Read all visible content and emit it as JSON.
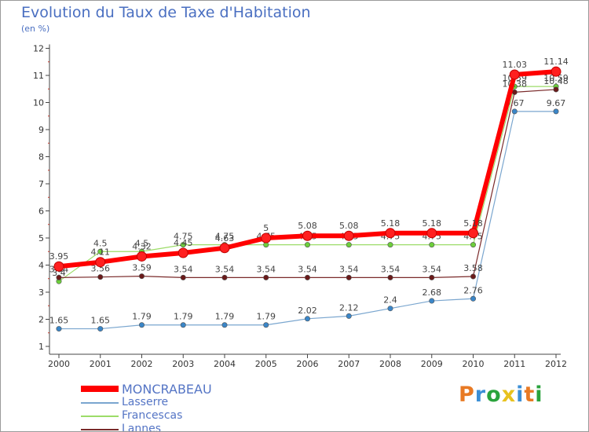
{
  "header": {
    "title": "Evolution du Taux de Taxe d'Habitation",
    "subtitle": "(en %)"
  },
  "logo": {
    "text": "Proxiti",
    "colors": [
      "#e87a24",
      "#3c8fd6",
      "#2aa33c",
      "#e8c21e",
      "#3c8fd6",
      "#e87a24",
      "#2aa33c"
    ]
  },
  "chart_data": {
    "type": "line",
    "categories": [
      "2000",
      "2001",
      "2002",
      "2003",
      "2004",
      "2005",
      "2006",
      "2007",
      "2008",
      "2009",
      "2010",
      "2011",
      "2012"
    ],
    "yticks": [
      "1",
      "2",
      "3",
      "4",
      "5",
      "6",
      "7",
      "8",
      "9",
      "10",
      "11",
      "12"
    ],
    "ylim": [
      1,
      12
    ],
    "grid": false,
    "legend": "bottom-left",
    "series": [
      {
        "name": "Lasserre",
        "color": "#7aa6cf",
        "marker": "#3a86c8",
        "width": 1.2,
        "values": [
          1.65,
          1.65,
          1.79,
          1.79,
          1.79,
          1.79,
          2.02,
          2.12,
          2.4,
          2.68,
          2.76,
          9.67,
          9.67
        ],
        "labels": [
          "1.65",
          "1.65",
          "1.79",
          "1.79",
          "1.79",
          "1.79",
          "2.02",
          "2.12",
          "2.4",
          "2.68",
          "2.76",
          "9.67",
          "9.67"
        ]
      },
      {
        "name": "Francescas",
        "color": "#9cdc68",
        "marker": "#6ccf3a",
        "width": 1.2,
        "values": [
          3.4,
          4.5,
          4.5,
          4.75,
          4.75,
          4.75,
          4.75,
          4.75,
          4.75,
          4.75,
          4.75,
          10.59,
          10.59
        ],
        "labels": [
          "3.4",
          "4.5",
          "4.5",
          "4.75",
          "4.75",
          "4.75",
          "4.75",
          "4.75",
          "4.75",
          "4.75",
          "4.75",
          "10.59",
          "10.59"
        ]
      },
      {
        "name": "Lannes",
        "color": "#7a2a2a",
        "marker": "#6a1a1a",
        "width": 1.2,
        "values": [
          3.54,
          3.56,
          3.59,
          3.54,
          3.54,
          3.54,
          3.54,
          3.54,
          3.54,
          3.54,
          3.58,
          10.38,
          10.48
        ],
        "labels": [
          "3.54",
          "3.56",
          "3.59",
          "3.54",
          "3.54",
          "3.54",
          "3.54",
          "3.54",
          "3.54",
          "3.54",
          "3.58",
          "10.38",
          "10.48"
        ]
      },
      {
        "name": "MONCRABEAU",
        "color": "#ff0000",
        "marker": "#ff2020",
        "width": 6,
        "values": [
          3.95,
          4.11,
          4.32,
          4.45,
          4.63,
          5,
          5.08,
          5.08,
          5.18,
          5.18,
          5.18,
          11.03,
          11.14
        ],
        "labels": [
          "3.95",
          "4.11",
          "4.32",
          "4.45",
          "4.63",
          "5",
          "5.08",
          "5.08",
          "5.18",
          "5.18",
          "5.18",
          "11.03",
          "11.14"
        ]
      }
    ]
  },
  "legend_items": [
    "MONCRABEAU",
    "Lasserre",
    "Francescas",
    "Lannes"
  ]
}
